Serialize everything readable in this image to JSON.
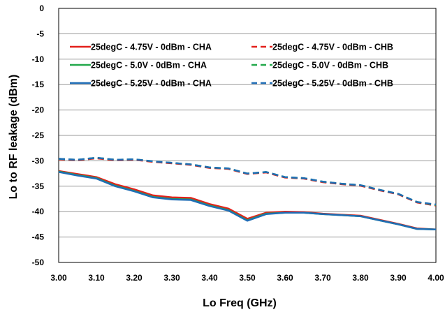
{
  "chart_data": {
    "type": "line",
    "title": "",
    "xlabel": "Lo Freq (GHz)",
    "ylabel": "Lo to RF leakage (dBm)",
    "xlim": [
      3.0,
      4.0
    ],
    "ylim": [
      -50,
      0
    ],
    "x_ticks": [
      "3.00",
      "3.10",
      "3.20",
      "3.30",
      "3.40",
      "3.50",
      "3.60",
      "3.70",
      "3.80",
      "3.90",
      "4.00"
    ],
    "y_ticks": [
      "0",
      "-5",
      "-10",
      "-15",
      "-20",
      "-25",
      "-30",
      "-35",
      "-40",
      "-45",
      "-50"
    ],
    "grid": "horizontal",
    "legend_position": "top",
    "x": [
      3.0,
      3.05,
      3.1,
      3.15,
      3.2,
      3.25,
      3.3,
      3.35,
      3.4,
      3.45,
      3.5,
      3.55,
      3.6,
      3.65,
      3.7,
      3.75,
      3.8,
      3.85,
      3.9,
      3.95,
      4.0
    ],
    "series": [
      {
        "name": "25degC - 4.75V - 0dBm - CHA",
        "color": "#e3201b",
        "dash": "solid",
        "values": [
          -32.0,
          -32.6,
          -33.2,
          -34.6,
          -35.6,
          -36.8,
          -37.2,
          -37.3,
          -38.5,
          -39.4,
          -41.4,
          -40.2,
          -40.0,
          -40.1,
          -40.4,
          -40.6,
          -40.8,
          -41.6,
          -42.4,
          -43.3,
          -43.5
        ]
      },
      {
        "name": "25degC - 4.75V - 0dBm - CHB",
        "color": "#e3201b",
        "dash": "dashed",
        "values": [
          -29.7,
          -29.9,
          -29.5,
          -29.9,
          -29.8,
          -30.2,
          -30.5,
          -30.8,
          -31.4,
          -31.6,
          -32.6,
          -32.3,
          -33.3,
          -33.5,
          -34.2,
          -34.6,
          -34.9,
          -35.8,
          -36.6,
          -38.2,
          -38.8
        ]
      },
      {
        "name": "25degC - 5.0V - 0dBm - CHA",
        "color": "#22a84a",
        "dash": "solid",
        "values": [
          -32.1,
          -32.8,
          -33.4,
          -34.9,
          -35.9,
          -37.1,
          -37.5,
          -37.6,
          -38.8,
          -39.7,
          -41.7,
          -40.4,
          -40.2,
          -40.2,
          -40.5,
          -40.7,
          -40.9,
          -41.7,
          -42.5,
          -43.4,
          -43.5
        ]
      },
      {
        "name": "25degC - 5.0V - 0dBm - CHB",
        "color": "#22a84a",
        "dash": "dashed",
        "values": [
          -29.6,
          -29.8,
          -29.4,
          -29.8,
          -29.7,
          -30.1,
          -30.4,
          -30.7,
          -31.3,
          -31.5,
          -32.5,
          -32.2,
          -33.2,
          -33.4,
          -34.1,
          -34.5,
          -34.8,
          -35.7,
          -36.5,
          -38.1,
          -38.7
        ]
      },
      {
        "name": "25degC - 5.25V - 0dBm - CHA",
        "color": "#1f6db5",
        "dash": "solid",
        "values": [
          -32.2,
          -32.9,
          -33.5,
          -35.0,
          -36.0,
          -37.2,
          -37.6,
          -37.7,
          -38.9,
          -39.8,
          -41.8,
          -40.5,
          -40.2,
          -40.2,
          -40.5,
          -40.7,
          -40.9,
          -41.7,
          -42.5,
          -43.4,
          -43.5
        ]
      },
      {
        "name": "25degC - 5.25V - 0dBm - CHB",
        "color": "#1f6db5",
        "dash": "dashed",
        "values": [
          -29.6,
          -29.8,
          -29.4,
          -29.8,
          -29.7,
          -30.1,
          -30.4,
          -30.7,
          -31.3,
          -31.5,
          -32.5,
          -32.2,
          -33.2,
          -33.4,
          -34.1,
          -34.5,
          -34.8,
          -35.7,
          -36.5,
          -38.1,
          -38.6
        ]
      }
    ]
  }
}
